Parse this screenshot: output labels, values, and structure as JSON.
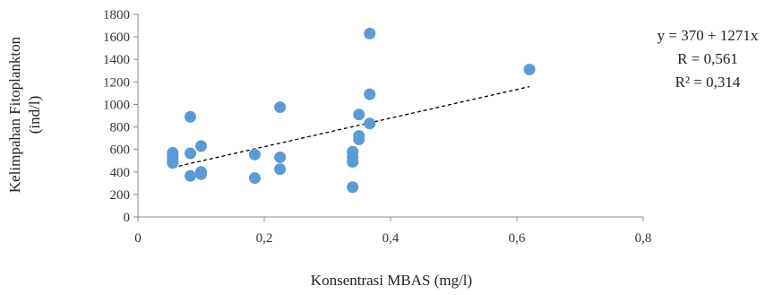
{
  "chart_data": {
    "type": "scatter",
    "xlabel": "Konsentrasi MBAS (mg/l)",
    "ylabel_line1": "Kelimpahan Fitoplankton",
    "ylabel_line2": "(ind/l)",
    "xlim": [
      0,
      0.8
    ],
    "ylim": [
      0,
      1800
    ],
    "xticks": [
      0,
      0.2,
      0.4,
      0.6,
      0.8
    ],
    "xtick_labels": [
      "0",
      "0,2",
      "0,4",
      "0,6",
      "0,8"
    ],
    "yticks": [
      0,
      200,
      400,
      600,
      800,
      1000,
      1200,
      1400,
      1600,
      1800
    ],
    "ytick_labels": [
      "0",
      "200",
      "400",
      "600",
      "800",
      "1000",
      "1200",
      "1400",
      "1600",
      "1800"
    ],
    "grid": false,
    "marker_color": "#5b9bd5",
    "trendline_color": "#000000",
    "points": [
      {
        "x": 0.055,
        "y": 570
      },
      {
        "x": 0.055,
        "y": 540
      },
      {
        "x": 0.055,
        "y": 510
      },
      {
        "x": 0.055,
        "y": 480
      },
      {
        "x": 0.083,
        "y": 890
      },
      {
        "x": 0.083,
        "y": 565
      },
      {
        "x": 0.083,
        "y": 365
      },
      {
        "x": 0.1,
        "y": 630
      },
      {
        "x": 0.1,
        "y": 400
      },
      {
        "x": 0.1,
        "y": 380
      },
      {
        "x": 0.185,
        "y": 555
      },
      {
        "x": 0.185,
        "y": 345
      },
      {
        "x": 0.225,
        "y": 975
      },
      {
        "x": 0.225,
        "y": 530
      },
      {
        "x": 0.225,
        "y": 425
      },
      {
        "x": 0.34,
        "y": 580
      },
      {
        "x": 0.34,
        "y": 535
      },
      {
        "x": 0.34,
        "y": 490
      },
      {
        "x": 0.34,
        "y": 265
      },
      {
        "x": 0.35,
        "y": 910
      },
      {
        "x": 0.35,
        "y": 720
      },
      {
        "x": 0.35,
        "y": 690
      },
      {
        "x": 0.367,
        "y": 1630
      },
      {
        "x": 0.367,
        "y": 1090
      },
      {
        "x": 0.367,
        "y": 830
      },
      {
        "x": 0.62,
        "y": 1310
      }
    ],
    "trendline": {
      "x_start": 0.055,
      "x_end": 0.62,
      "intercept": 370,
      "slope": 1271
    },
    "annotations": {
      "equation": "y = 370 + 1271x",
      "r": "R = 0,561",
      "r2": "R² = 0,314"
    }
  }
}
